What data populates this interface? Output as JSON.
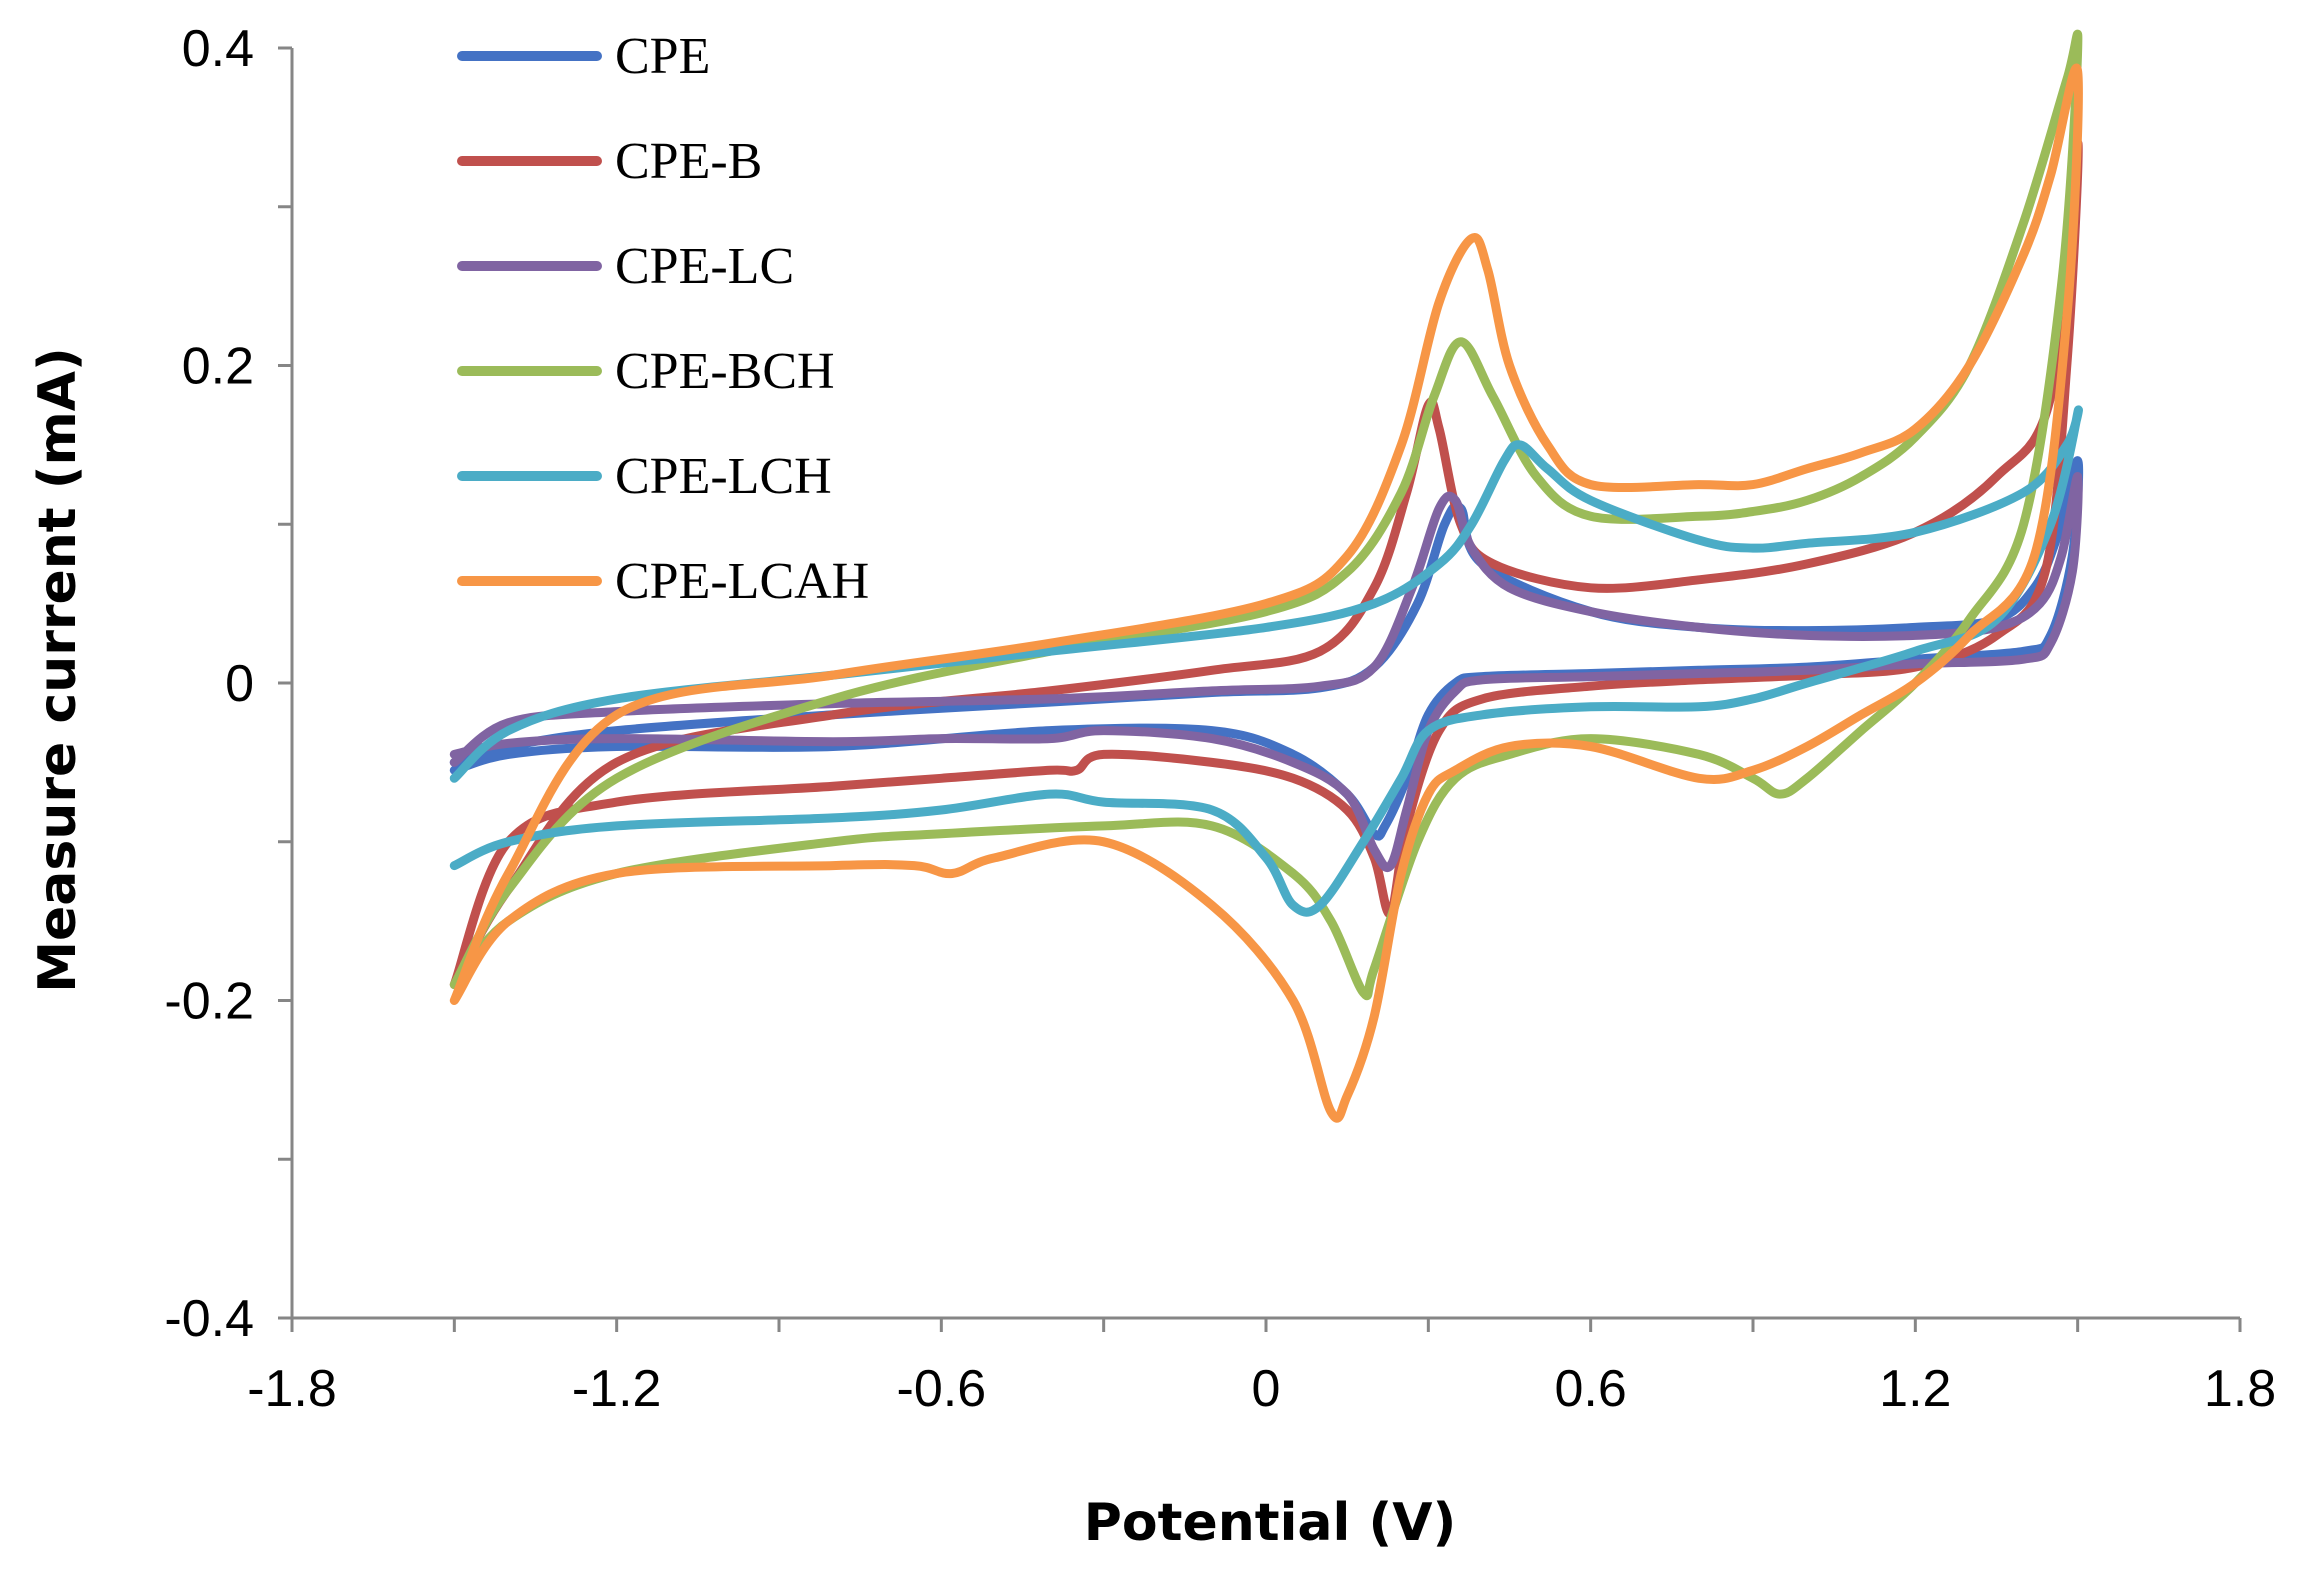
{
  "chart_data": {
    "type": "line",
    "title": "",
    "xlabel": "Potential (V)",
    "ylabel": "Measure current (mA)",
    "xlim": [
      -1.8,
      1.8
    ],
    "ylim": [
      -0.4,
      0.4
    ],
    "xticks": [
      -1.8,
      -1.2,
      -0.6,
      0,
      0.6,
      1.2,
      1.8
    ],
    "xtick_labels": [
      "-1.8",
      "-1.2",
      "-0.6",
      "0",
      "0.6",
      "1.2",
      "1.8"
    ],
    "yticks": [
      -0.4,
      -0.2,
      0,
      0.2,
      0.4
    ],
    "ytick_labels": [
      "-0.4",
      "-0.2",
      "0",
      "0.2",
      "0.4"
    ],
    "grid": false,
    "legend_position": "top-left",
    "series": [
      {
        "name": "CPE",
        "color": "#4472C4",
        "x": [
          -1.5,
          -1.4,
          -1.2,
          -0.8,
          -0.4,
          -0.1,
          0.1,
          0.2,
          0.28,
          0.33,
          0.36,
          0.4,
          0.6,
          0.8,
          1.0,
          1.2,
          1.35,
          1.42,
          1.46,
          1.5,
          1.49,
          1.45,
          1.4,
          1.2,
          1.0,
          0.8,
          0.6,
          0.4,
          0.35,
          0.3,
          0.26,
          0.22,
          0.2,
          0.15,
          0.05,
          -0.1,
          -0.4,
          -0.8,
          -1.2,
          -1.4,
          -1.5
        ],
        "y": [
          -0.05,
          -0.04,
          -0.03,
          -0.02,
          -0.012,
          -0.006,
          -0.003,
          0.01,
          0.05,
          0.1,
          0.11,
          0.075,
          0.045,
          0.035,
          0.033,
          0.035,
          0.04,
          0.06,
          0.09,
          0.14,
          0.08,
          0.03,
          0.02,
          0.015,
          0.01,
          0.008,
          0.006,
          0.004,
          0.0,
          -0.02,
          -0.06,
          -0.09,
          -0.095,
          -0.07,
          -0.045,
          -0.03,
          -0.03,
          -0.04,
          -0.04,
          -0.045,
          -0.055
        ]
      },
      {
        "name": "CPE-B",
        "color": "#C0504D",
        "x": [
          -1.5,
          -1.4,
          -1.2,
          -0.8,
          -0.4,
          -0.1,
          0.1,
          0.2,
          0.26,
          0.3,
          0.32,
          0.36,
          0.42,
          0.6,
          0.8,
          1.0,
          1.2,
          1.35,
          1.45,
          1.5,
          1.48,
          1.44,
          1.35,
          1.2,
          1.0,
          0.8,
          0.6,
          0.4,
          0.32,
          0.26,
          0.23,
          0.2,
          0.15,
          0.05,
          -0.1,
          -0.3,
          -0.35,
          -0.4,
          -0.6,
          -0.8,
          -1.2,
          -1.4,
          -1.5
        ],
        "y": [
          -0.19,
          -0.13,
          -0.05,
          -0.02,
          -0.005,
          0.008,
          0.02,
          0.06,
          0.12,
          0.175,
          0.16,
          0.1,
          0.075,
          0.06,
          0.065,
          0.075,
          0.095,
          0.13,
          0.18,
          0.34,
          0.2,
          0.07,
          0.03,
          0.01,
          0.005,
          0.002,
          -0.002,
          -0.01,
          -0.03,
          -0.09,
          -0.145,
          -0.11,
          -0.08,
          -0.06,
          -0.05,
          -0.045,
          -0.055,
          -0.055,
          -0.06,
          -0.065,
          -0.075,
          -0.1,
          -0.19
        ]
      },
      {
        "name": "CPE-LC",
        "color": "#8064A2",
        "x": [
          -1.5,
          -1.4,
          -1.2,
          -0.8,
          -0.4,
          -0.1,
          0.1,
          0.2,
          0.27,
          0.32,
          0.35,
          0.38,
          0.45,
          0.6,
          0.8,
          1.0,
          1.2,
          1.35,
          1.43,
          1.47,
          1.5,
          1.49,
          1.45,
          1.4,
          1.2,
          1.0,
          0.8,
          0.6,
          0.4,
          0.35,
          0.3,
          0.26,
          0.23,
          0.2,
          0.15,
          0.05,
          -0.1,
          -0.3,
          -0.4,
          -0.6,
          -0.8,
          -1.2,
          -1.4,
          -1.5
        ],
        "y": [
          -0.05,
          -0.025,
          -0.018,
          -0.013,
          -0.01,
          -0.005,
          -0.002,
          0.01,
          0.06,
          0.11,
          0.115,
          0.085,
          0.06,
          0.045,
          0.035,
          0.03,
          0.03,
          0.035,
          0.05,
          0.08,
          0.13,
          0.07,
          0.025,
          0.015,
          0.012,
          0.008,
          0.006,
          0.004,
          0.002,
          -0.005,
          -0.03,
          -0.08,
          -0.115,
          -0.105,
          -0.07,
          -0.05,
          -0.035,
          -0.03,
          -0.035,
          -0.035,
          -0.037,
          -0.035,
          -0.038,
          -0.045
        ]
      },
      {
        "name": "CPE-BCH",
        "color": "#9BBB59",
        "x": [
          -1.5,
          -1.4,
          -1.2,
          -0.8,
          -0.4,
          0.0,
          0.15,
          0.25,
          0.31,
          0.36,
          0.42,
          0.5,
          0.6,
          0.8,
          0.9,
          1.0,
          1.1,
          1.2,
          1.3,
          1.4,
          1.48,
          1.5,
          1.47,
          1.4,
          1.3,
          1.2,
          1.1,
          1.0,
          0.95,
          0.9,
          0.8,
          0.6,
          0.45,
          0.35,
          0.28,
          0.2,
          0.18,
          0.12,
          0.05,
          -0.1,
          -0.3,
          -0.6,
          -0.8,
          -1.2,
          -1.4,
          -1.5
        ],
        "y": [
          -0.19,
          -0.13,
          -0.06,
          -0.01,
          0.02,
          0.045,
          0.07,
          0.12,
          0.18,
          0.215,
          0.18,
          0.13,
          0.105,
          0.105,
          0.108,
          0.115,
          0.13,
          0.155,
          0.2,
          0.29,
          0.38,
          0.4,
          0.25,
          0.1,
          0.04,
          0.0,
          -0.03,
          -0.06,
          -0.07,
          -0.06,
          -0.045,
          -0.035,
          -0.045,
          -0.06,
          -0.1,
          -0.18,
          -0.195,
          -0.15,
          -0.12,
          -0.09,
          -0.09,
          -0.095,
          -0.1,
          -0.12,
          -0.15,
          -0.19
        ]
      },
      {
        "name": "CPE-LCH",
        "color": "#4BACC6",
        "x": [
          -1.5,
          -1.4,
          -1.2,
          -0.8,
          -0.4,
          0.0,
          0.2,
          0.32,
          0.38,
          0.44,
          0.47,
          0.52,
          0.6,
          0.8,
          0.9,
          1.0,
          1.2,
          1.4,
          1.48,
          1.5,
          1.45,
          1.35,
          1.2,
          1.0,
          0.9,
          0.8,
          0.6,
          0.4,
          0.3,
          0.25,
          0.18,
          0.1,
          0.05,
          0.0,
          -0.1,
          -0.3,
          -0.4,
          -0.6,
          -0.8,
          -1.2,
          -1.4,
          -1.5
        ],
        "y": [
          -0.06,
          -0.03,
          -0.01,
          0.005,
          0.02,
          0.035,
          0.05,
          0.075,
          0.1,
          0.14,
          0.15,
          0.135,
          0.115,
          0.09,
          0.085,
          0.088,
          0.095,
          0.12,
          0.15,
          0.17,
          0.1,
          0.04,
          0.02,
          0.0,
          -0.01,
          -0.015,
          -0.015,
          -0.02,
          -0.03,
          -0.06,
          -0.1,
          -0.14,
          -0.14,
          -0.11,
          -0.08,
          -0.075,
          -0.07,
          -0.08,
          -0.085,
          -0.09,
          -0.1,
          -0.115
        ]
      },
      {
        "name": "CPE-LCAH",
        "color": "#F79646",
        "x": [
          -1.5,
          -1.4,
          -1.2,
          -0.8,
          -0.4,
          0.0,
          0.15,
          0.25,
          0.32,
          0.38,
          0.41,
          0.45,
          0.52,
          0.6,
          0.8,
          0.9,
          1.0,
          1.1,
          1.2,
          1.3,
          1.4,
          1.45,
          1.5,
          1.48,
          1.42,
          1.3,
          1.2,
          1.1,
          1.0,
          0.9,
          0.8,
          0.6,
          0.45,
          0.35,
          0.3,
          0.25,
          0.2,
          0.15,
          0.12,
          0.05,
          -0.1,
          -0.3,
          -0.5,
          -0.58,
          -0.65,
          -0.8,
          -1.2,
          -1.4,
          -1.5
        ],
        "y": [
          -0.2,
          -0.12,
          -0.02,
          0.005,
          0.025,
          0.05,
          0.08,
          0.15,
          0.24,
          0.28,
          0.26,
          0.2,
          0.15,
          0.125,
          0.125,
          0.125,
          0.135,
          0.145,
          0.16,
          0.2,
          0.27,
          0.32,
          0.385,
          0.23,
          0.08,
          0.03,
          0.0,
          -0.02,
          -0.04,
          -0.055,
          -0.06,
          -0.04,
          -0.04,
          -0.055,
          -0.07,
          -0.12,
          -0.21,
          -0.26,
          -0.27,
          -0.2,
          -0.14,
          -0.1,
          -0.11,
          -0.12,
          -0.115,
          -0.115,
          -0.12,
          -0.15,
          -0.2
        ]
      }
    ]
  }
}
